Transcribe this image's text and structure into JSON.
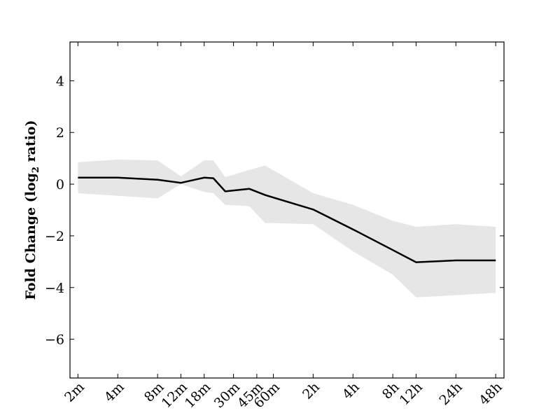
{
  "chart_data": {
    "type": "line",
    "title": "",
    "xlabel": "",
    "ylabel": "Fold Change (log2 ratio)",
    "ylabel_parts": {
      "pre": "Fold Change (log",
      "sub": "2",
      "post": " ratio)"
    },
    "ylim": [
      -7.5,
      5.5
    ],
    "yticks": [
      4,
      2,
      0,
      -2,
      -4,
      -6
    ],
    "ytick_labels": [
      "4",
      "2",
      "0",
      "−2",
      "−4",
      "−6"
    ],
    "grid": false,
    "categories": [
      "2m",
      "4m",
      "8m",
      "12m",
      "18m",
      "30m",
      "45m",
      "60m",
      "2h",
      "4h",
      "8h",
      "12h",
      "24h",
      "48h"
    ],
    "category_log_minutes": [
      1,
      2,
      3,
      3.585,
      4.17,
      4.907,
      5.492,
      5.907,
      6.907,
      7.907,
      8.907,
      9.492,
      10.492,
      11.492
    ],
    "xlim": [
      0.8,
      11.7
    ],
    "series": [
      {
        "name": "",
        "color": "#000000",
        "x": [
          1,
          2,
          3,
          3.585,
          4.17,
          4.4,
          4.7,
          5.3,
          5.7,
          6.907,
          7.907,
          8.907,
          9.492,
          10.492,
          11.492
        ],
        "mean": [
          0.25,
          0.25,
          0.17,
          0.05,
          0.25,
          0.23,
          -0.28,
          -0.18,
          -0.42,
          -0.98,
          -1.75,
          -2.55,
          -3.02,
          -2.95,
          -2.95
        ],
        "upper": [
          0.85,
          0.95,
          0.92,
          0.3,
          0.92,
          0.92,
          0.27,
          0.55,
          0.72,
          -0.35,
          -0.8,
          -1.42,
          -1.65,
          -1.55,
          -1.65
        ],
        "lower": [
          -0.35,
          -0.45,
          -0.55,
          0.0,
          -0.3,
          -0.35,
          -0.8,
          -0.85,
          -1.5,
          -1.55,
          -2.6,
          -3.5,
          -4.38,
          -4.3,
          -4.2
        ]
      }
    ],
    "band_color": "#e6e6e6"
  }
}
